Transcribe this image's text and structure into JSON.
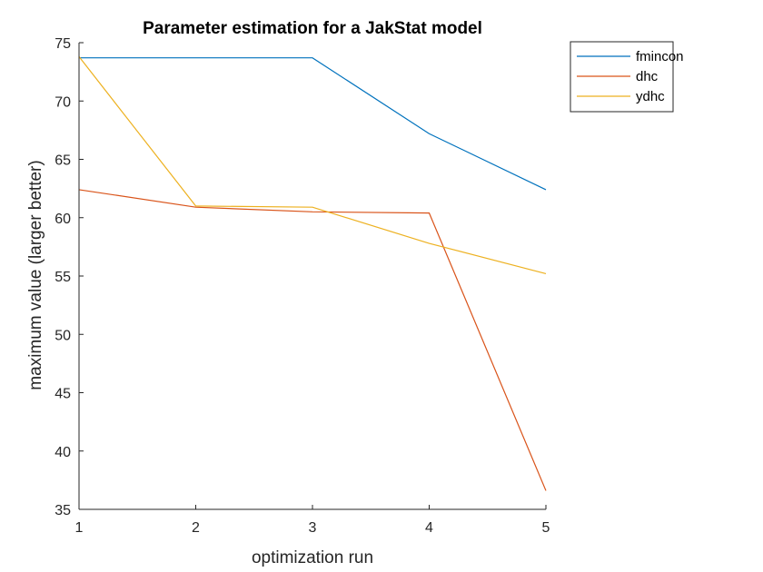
{
  "chart_data": {
    "type": "line",
    "title": "Parameter estimation for a JakStat model",
    "xlabel": "optimization run",
    "ylabel": "maximum value (larger better)",
    "x": [
      1,
      2,
      3,
      4,
      5
    ],
    "xlim": [
      1,
      5
    ],
    "ylim": [
      35,
      75
    ],
    "xticks": [
      "1",
      "2",
      "3",
      "4",
      "5"
    ],
    "yticks": [
      "35",
      "40",
      "45",
      "50",
      "55",
      "60",
      "65",
      "70",
      "75"
    ],
    "grid": false,
    "legend_position": "top-right outside",
    "series": [
      {
        "name": "fmincon",
        "color": "#0072BD",
        "values": [
          73.7,
          73.7,
          73.7,
          67.2,
          62.4
        ]
      },
      {
        "name": "dhc",
        "color": "#D95319",
        "values": [
          62.4,
          60.9,
          60.5,
          60.4,
          36.6
        ]
      },
      {
        "name": "ydhc",
        "color": "#EDB120",
        "values": [
          73.8,
          61.0,
          60.9,
          57.8,
          55.2
        ]
      }
    ]
  }
}
